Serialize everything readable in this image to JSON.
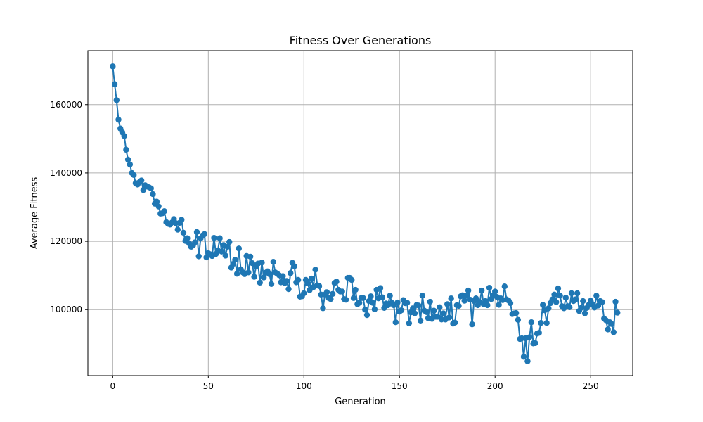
{
  "chart_data": {
    "type": "line",
    "title": "Fitness Over Generations",
    "xlabel": "Generation",
    "ylabel": "Average Fitness",
    "xlim": [
      -13,
      272
    ],
    "ylim": [
      80700,
      175800
    ],
    "xticks": [
      0,
      50,
      100,
      150,
      200,
      250
    ],
    "yticks": [
      100000,
      120000,
      140000,
      160000
    ],
    "grid": true,
    "series_color": "#1f77b4",
    "x_start": 0,
    "values": [
      171200,
      166000,
      161300,
      155600,
      153000,
      151900,
      150800,
      146800,
      143900,
      142500,
      140000,
      139400,
      137000,
      136600,
      137300,
      137800,
      135000,
      136400,
      136000,
      135800,
      135500,
      133800,
      131000,
      131600,
      130200,
      128100,
      128200,
      128800,
      125600,
      125100,
      124900,
      125500,
      126500,
      125300,
      123400,
      125400,
      126300,
      122500,
      120100,
      120900,
      119400,
      118400,
      118800,
      119700,
      122700,
      115600,
      120900,
      121700,
      122100,
      115300,
      116500,
      116200,
      115700,
      121000,
      116300,
      117300,
      120900,
      117000,
      118900,
      115800,
      118400,
      119800,
      112300,
      113400,
      114600,
      110500,
      117900,
      111800,
      110900,
      110400,
      115700,
      110900,
      115500,
      113600,
      109600,
      112700,
      113500,
      107900,
      113800,
      109400,
      110800,
      111200,
      110400,
      107500,
      114000,
      110900,
      110600,
      110100,
      108000,
      109800,
      107800,
      108400,
      106000,
      110700,
      113700,
      112700,
      108000,
      108700,
      103800,
      103900,
      104800,
      108700,
      107700,
      105700,
      109100,
      106600,
      111700,
      107100,
      106900,
      104400,
      100400,
      104400,
      105100,
      103400,
      103100,
      104600,
      107800,
      108200,
      105800,
      105300,
      105300,
      103100,
      102900,
      109300,
      109300,
      108700,
      103400,
      105800,
      101600,
      102000,
      103400,
      103400,
      100000,
      98400,
      102500,
      103900,
      102000,
      100100,
      105800,
      103300,
      106300,
      103600,
      100500,
      101800,
      101300,
      104100,
      102000,
      101300,
      96300,
      102100,
      99400,
      99800,
      102800,
      101900,
      102000,
      96000,
      99200,
      100400,
      98900,
      101400,
      101200,
      96800,
      104100,
      99700,
      99300,
      97500,
      102300,
      97300,
      99700,
      97900,
      97900,
      100700,
      97100,
      98900,
      97100,
      101600,
      97700,
      103300,
      95900,
      96200,
      101300,
      101100,
      103900,
      104200,
      102600,
      104100,
      105600,
      102900,
      95700,
      102500,
      103300,
      101300,
      102200,
      105600,
      101600,
      102500,
      101300,
      106400,
      103100,
      104200,
      105300,
      103700,
      101400,
      103300,
      102800,
      106800,
      103000,
      102700,
      101900,
      98700,
      98900,
      99000,
      97000,
      91400,
      91600,
      86200,
      91600,
      84900,
      91900,
      96300,
      90100,
      90200,
      93000,
      93200,
      96100,
      101400,
      99800,
      96100,
      100400,
      101900,
      103000,
      104400,
      102200,
      106200,
      104100,
      101000,
      100400,
      103500,
      101000,
      100700,
      104800,
      102500,
      103000,
      104800,
      99600,
      100500,
      102500,
      98900,
      100500,
      101400,
      102600,
      101600,
      100600,
      104100,
      101200,
      102500,
      102200,
      97400,
      96900,
      94200,
      96300,
      95800,
      93400,
      102300,
      99100
    ]
  }
}
